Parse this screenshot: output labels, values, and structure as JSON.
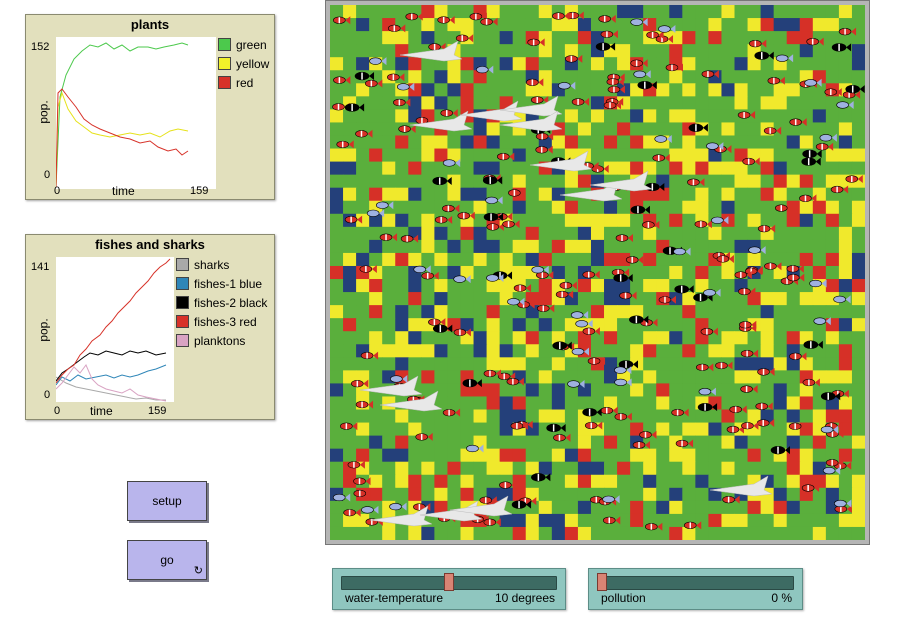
{
  "plants_plot": {
    "title": "plants",
    "ylabel": "pop.",
    "xlabel": "time",
    "ymax": "152",
    "ymin": "0",
    "xmin": "0",
    "xmax": "159",
    "legend": [
      {
        "label": "green",
        "color": "#4cc94c"
      },
      {
        "label": "yellow",
        "color": "#f1f12a"
      },
      {
        "label": "red",
        "color": "#d73229"
      }
    ]
  },
  "fish_plot": {
    "title": "fishes and sharks",
    "ylabel": "pop.",
    "xlabel": "time",
    "ymax": "141",
    "ymin": "0",
    "xmin": "0",
    "xmax": "159",
    "legend": [
      {
        "label": "sharks",
        "color": "#a9a9a9"
      },
      {
        "label": "fishes-1 blue",
        "color": "#2f86b8"
      },
      {
        "label": "fishes-2 black",
        "color": "#000000"
      },
      {
        "label": "fishes-3 red",
        "color": "#d73229"
      },
      {
        "label": "planktons",
        "color": "#d9a3c3"
      }
    ]
  },
  "buttons": {
    "setup": "setup",
    "go": "go",
    "forever_icon": "↻"
  },
  "sliders": {
    "water_temperature": {
      "name": "water-temperature",
      "value": "10 degrees",
      "position": 0.5
    },
    "pollution": {
      "name": "pollution",
      "value": "0 %",
      "position": 0.0
    }
  },
  "colors": {
    "patch_green": "#5aaf3c",
    "patch_yellow": "#f0e92c",
    "patch_red": "#d63027",
    "patch_navy": "#24407a"
  }
}
